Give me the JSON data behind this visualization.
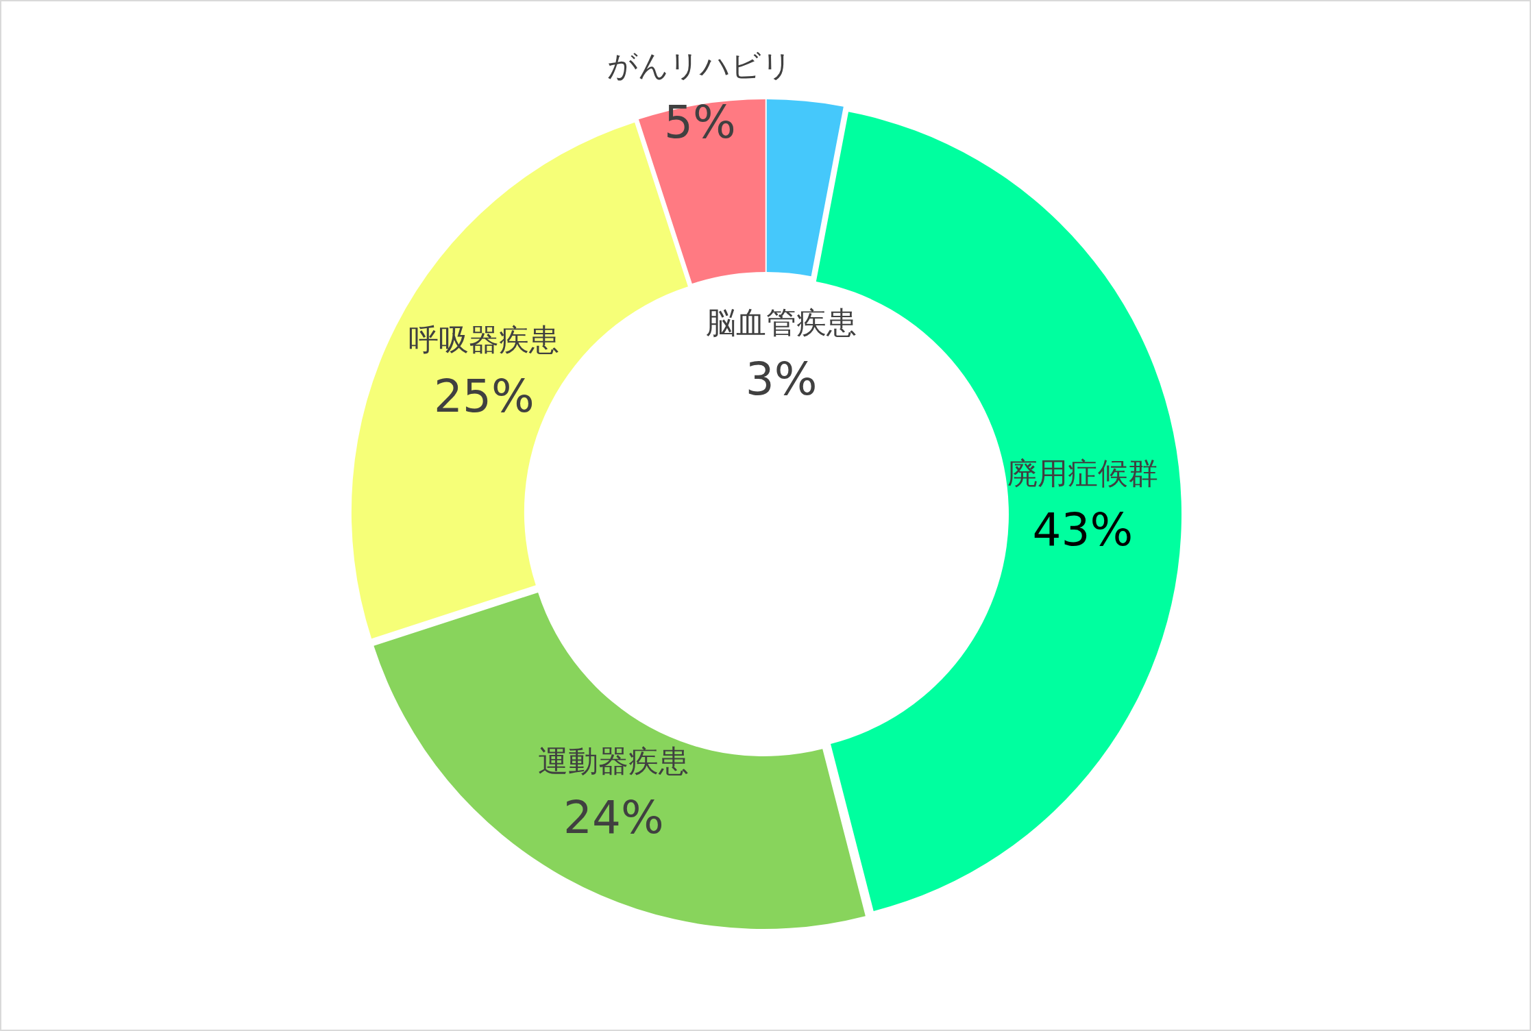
{
  "chart_data": {
    "type": "donut",
    "categories": [
      "脳血管疾患",
      "廃用症候群",
      "運動器疾患",
      "呼吸器疾患",
      "がんリハビリ"
    ],
    "values": [
      3,
      43,
      24,
      25,
      5
    ],
    "colors": [
      "#45c8fb",
      "#00ff9f",
      "#88d45c",
      "#f6ff78",
      "#ff7a82"
    ],
    "value_labels": [
      "3%",
      "43%",
      "24%",
      "25%",
      "5%"
    ]
  }
}
